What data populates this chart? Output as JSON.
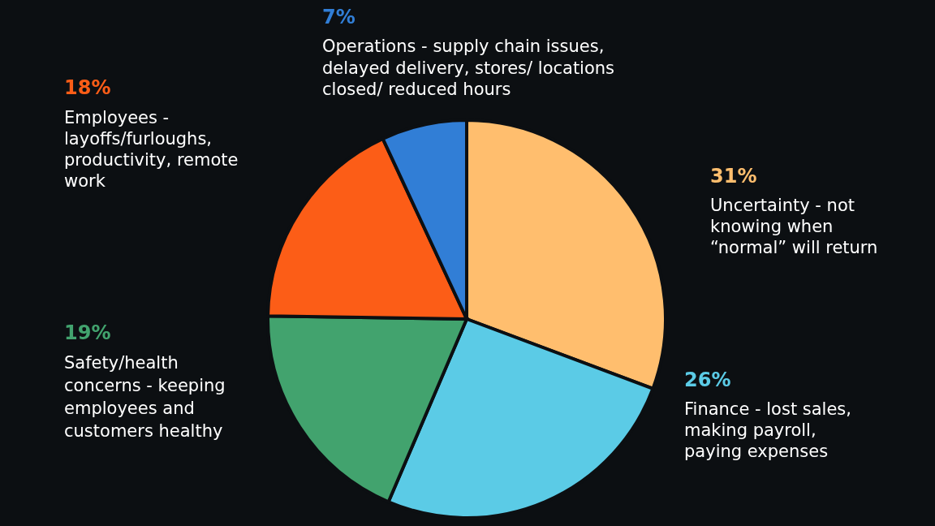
{
  "chart_data": {
    "type": "pie",
    "categories": [
      "Uncertainty - not knowing when “normal” will return",
      "Finance - lost sales, making payroll, paying expenses",
      "Safety/health concerns - keeping employees and customers healthy",
      "Employees - layoffs/furloughs, productivity, remote work",
      "Operations - supply chain issues, delayed delivery, stores/ locations closed/ reduced hours"
    ],
    "values": [
      31,
      26,
      19,
      18,
      7
    ],
    "colors": [
      "#ffbe6e",
      "#5bcbe6",
      "#42a36e",
      "#fc5d17",
      "#317ed6"
    ],
    "value_labels": [
      "31%",
      "26%",
      "19%",
      "18%",
      "7%"
    ]
  }
}
